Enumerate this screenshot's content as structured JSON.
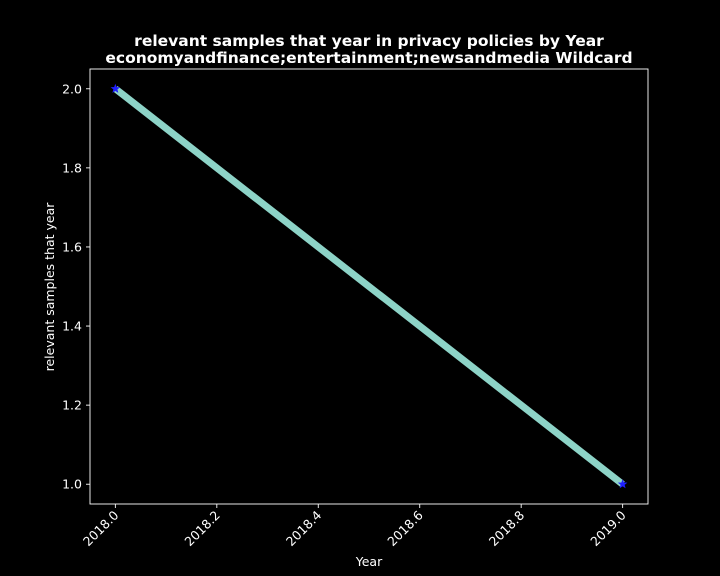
{
  "chart_data": {
    "type": "line",
    "title_line1": "relevant samples that year in privacy policies by Year",
    "title_line2": "economyandfinance;entertainment;newsandmedia Wildcard",
    "xlabel": "Year",
    "ylabel": "relevant samples that year",
    "xlim": [
      2017.95,
      2019.05
    ],
    "ylim": [
      0.95,
      2.05
    ],
    "x_ticks": [
      "2018.0",
      "2018.2",
      "2018.4",
      "2018.6",
      "2018.8",
      "2019.0"
    ],
    "y_ticks": [
      "1.0",
      "1.2",
      "1.4",
      "1.6",
      "1.8",
      "2.0"
    ],
    "grid": false,
    "series": [
      {
        "x": [
          2018.0,
          2019.0
        ],
        "y": [
          2.0,
          1.0
        ],
        "line_color": "#8dd3c7",
        "marker_color": "#1f1fff",
        "marker": "star"
      }
    ],
    "background": "#000000",
    "foreground": "#ffffff"
  }
}
